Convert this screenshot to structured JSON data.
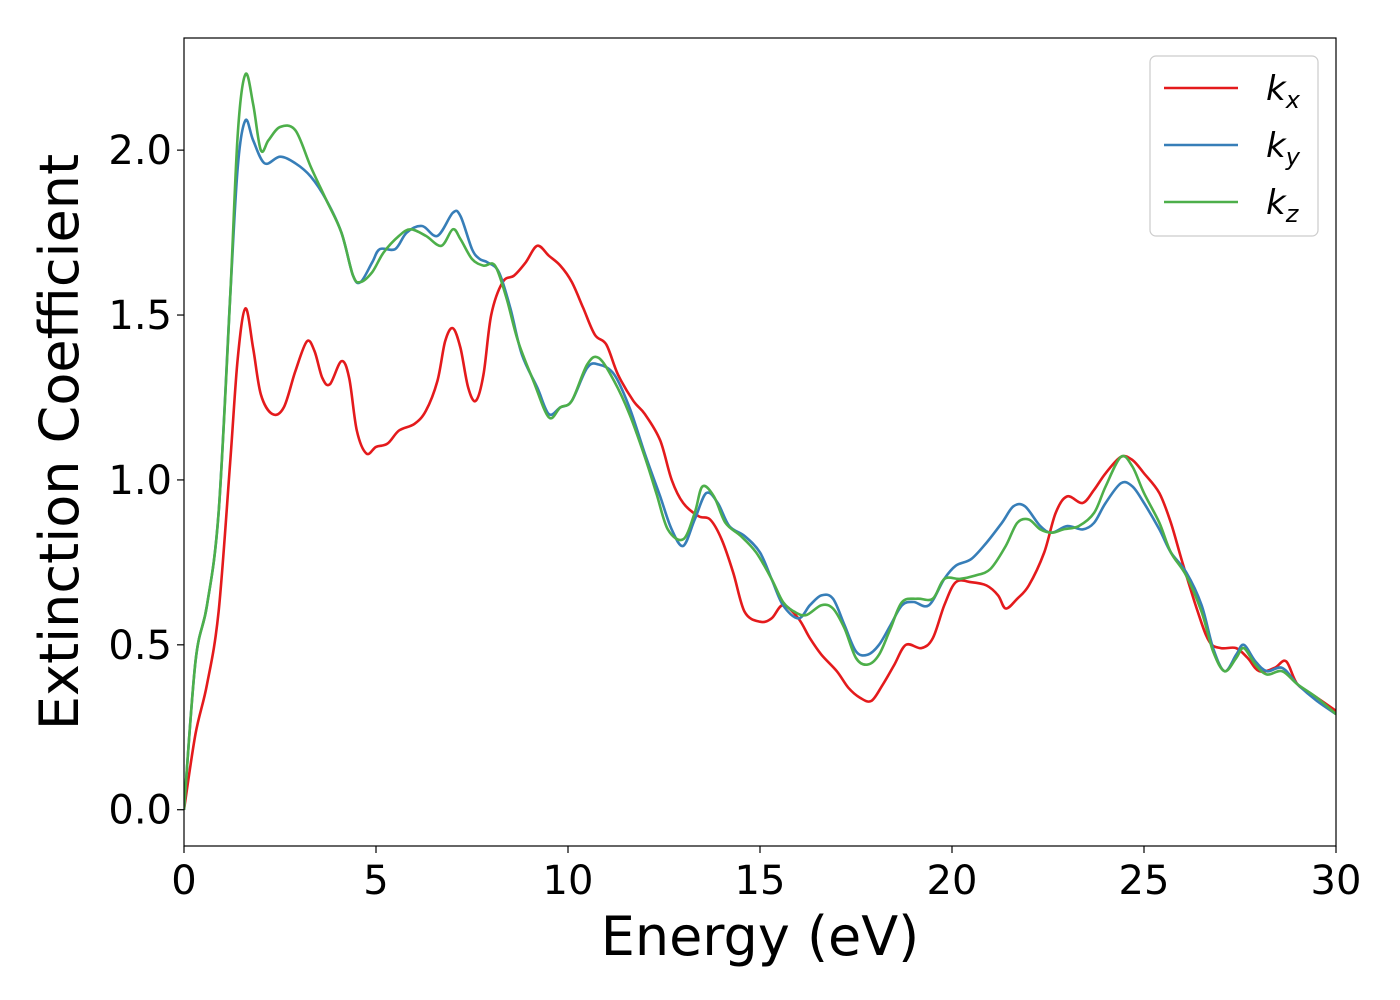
{
  "chart_data": {
    "type": "line",
    "xlabel": "Energy (eV)",
    "ylabel": "Extinction Coefficient",
    "xlim": [
      0,
      30
    ],
    "ylim": [
      -0.11,
      2.34
    ],
    "xticks": [
      0,
      5,
      10,
      15,
      20,
      25,
      30
    ],
    "xtick_labels": [
      "0",
      "5",
      "10",
      "15",
      "20",
      "25",
      "30"
    ],
    "yticks": [
      0.0,
      0.5,
      1.0,
      1.5,
      2.0
    ],
    "ytick_labels": [
      "0.0",
      "0.5",
      "1.0",
      "1.5",
      "2.0"
    ],
    "grid": false,
    "legend_position": "top-right",
    "series": [
      {
        "name": "k",
        "subscript": "x",
        "color": "#e41a1c",
        "points": [
          [
            0,
            0
          ],
          [
            0.3,
            0.23
          ],
          [
            0.6,
            0.38
          ],
          [
            0.9,
            0.6
          ],
          [
            1.2,
            1.05
          ],
          [
            1.4,
            1.37
          ],
          [
            1.6,
            1.52
          ],
          [
            1.8,
            1.4
          ],
          [
            2.0,
            1.26
          ],
          [
            2.3,
            1.2
          ],
          [
            2.6,
            1.22
          ],
          [
            2.9,
            1.33
          ],
          [
            3.2,
            1.42
          ],
          [
            3.4,
            1.39
          ],
          [
            3.6,
            1.31
          ],
          [
            3.8,
            1.29
          ],
          [
            4.1,
            1.36
          ],
          [
            4.3,
            1.31
          ],
          [
            4.5,
            1.15
          ],
          [
            4.75,
            1.08
          ],
          [
            5.0,
            1.1
          ],
          [
            5.3,
            1.11
          ],
          [
            5.6,
            1.15
          ],
          [
            6.0,
            1.17
          ],
          [
            6.3,
            1.21
          ],
          [
            6.6,
            1.3
          ],
          [
            6.8,
            1.42
          ],
          [
            7.0,
            1.46
          ],
          [
            7.2,
            1.4
          ],
          [
            7.4,
            1.28
          ],
          [
            7.6,
            1.24
          ],
          [
            7.8,
            1.32
          ],
          [
            8.0,
            1.5
          ],
          [
            8.3,
            1.6
          ],
          [
            8.6,
            1.62
          ],
          [
            8.9,
            1.66
          ],
          [
            9.2,
            1.71
          ],
          [
            9.5,
            1.68
          ],
          [
            9.8,
            1.65
          ],
          [
            10.1,
            1.6
          ],
          [
            10.4,
            1.52
          ],
          [
            10.7,
            1.44
          ],
          [
            11.0,
            1.41
          ],
          [
            11.3,
            1.32
          ],
          [
            11.7,
            1.24
          ],
          [
            12.0,
            1.2
          ],
          [
            12.4,
            1.12
          ],
          [
            12.7,
            1.0
          ],
          [
            13.0,
            0.93
          ],
          [
            13.4,
            0.89
          ],
          [
            13.7,
            0.88
          ],
          [
            14.0,
            0.82
          ],
          [
            14.3,
            0.72
          ],
          [
            14.6,
            0.6
          ],
          [
            15.0,
            0.57
          ],
          [
            15.3,
            0.58
          ],
          [
            15.6,
            0.62
          ],
          [
            16.0,
            0.58
          ],
          [
            16.3,
            0.52
          ],
          [
            16.6,
            0.47
          ],
          [
            17.0,
            0.42
          ],
          [
            17.3,
            0.37
          ],
          [
            17.6,
            0.34
          ],
          [
            17.9,
            0.33
          ],
          [
            18.2,
            0.38
          ],
          [
            18.5,
            0.44
          ],
          [
            18.8,
            0.5
          ],
          [
            19.2,
            0.49
          ],
          [
            19.5,
            0.52
          ],
          [
            19.8,
            0.62
          ],
          [
            20.1,
            0.69
          ],
          [
            20.5,
            0.69
          ],
          [
            20.9,
            0.68
          ],
          [
            21.2,
            0.65
          ],
          [
            21.4,
            0.61
          ],
          [
            21.7,
            0.64
          ],
          [
            22.0,
            0.68
          ],
          [
            22.4,
            0.78
          ],
          [
            22.7,
            0.9
          ],
          [
            23.0,
            0.95
          ],
          [
            23.4,
            0.93
          ],
          [
            23.7,
            0.97
          ],
          [
            24.0,
            1.02
          ],
          [
            24.4,
            1.07
          ],
          [
            24.7,
            1.06
          ],
          [
            25.0,
            1.02
          ],
          [
            25.4,
            0.96
          ],
          [
            25.7,
            0.87
          ],
          [
            26.0,
            0.75
          ],
          [
            26.4,
            0.6
          ],
          [
            26.7,
            0.51
          ],
          [
            27.0,
            0.49
          ],
          [
            27.4,
            0.49
          ],
          [
            27.7,
            0.46
          ],
          [
            28.0,
            0.42
          ],
          [
            28.4,
            0.43
          ],
          [
            28.7,
            0.45
          ],
          [
            29.0,
            0.38
          ],
          [
            29.5,
            0.34
          ],
          [
            30,
            0.3
          ]
        ]
      },
      {
        "name": "k",
        "subscript": "y",
        "color": "#377eb8",
        "points": [
          [
            0,
            0
          ],
          [
            0.3,
            0.45
          ],
          [
            0.6,
            0.62
          ],
          [
            0.9,
            0.9
          ],
          [
            1.2,
            1.55
          ],
          [
            1.4,
            1.95
          ],
          [
            1.6,
            2.09
          ],
          [
            1.8,
            2.03
          ],
          [
            2.1,
            1.96
          ],
          [
            2.5,
            1.98
          ],
          [
            2.9,
            1.96
          ],
          [
            3.3,
            1.92
          ],
          [
            3.7,
            1.85
          ],
          [
            4.1,
            1.75
          ],
          [
            4.4,
            1.62
          ],
          [
            4.6,
            1.6
          ],
          [
            4.9,
            1.66
          ],
          [
            5.1,
            1.7
          ],
          [
            5.5,
            1.7
          ],
          [
            5.8,
            1.75
          ],
          [
            6.2,
            1.77
          ],
          [
            6.6,
            1.74
          ],
          [
            7.0,
            1.81
          ],
          [
            7.2,
            1.8
          ],
          [
            7.5,
            1.7
          ],
          [
            7.7,
            1.67
          ],
          [
            7.9,
            1.66
          ],
          [
            8.2,
            1.63
          ],
          [
            8.5,
            1.52
          ],
          [
            8.8,
            1.38
          ],
          [
            9.2,
            1.28
          ],
          [
            9.5,
            1.2
          ],
          [
            9.8,
            1.22
          ],
          [
            10.1,
            1.24
          ],
          [
            10.5,
            1.34
          ],
          [
            10.8,
            1.35
          ],
          [
            11.2,
            1.32
          ],
          [
            11.6,
            1.22
          ],
          [
            12.0,
            1.08
          ],
          [
            12.4,
            0.95
          ],
          [
            12.7,
            0.85
          ],
          [
            13.0,
            0.8
          ],
          [
            13.3,
            0.88
          ],
          [
            13.6,
            0.96
          ],
          [
            13.9,
            0.93
          ],
          [
            14.2,
            0.86
          ],
          [
            14.6,
            0.83
          ],
          [
            15.0,
            0.78
          ],
          [
            15.3,
            0.7
          ],
          [
            15.6,
            0.62
          ],
          [
            16.0,
            0.58
          ],
          [
            16.3,
            0.62
          ],
          [
            16.6,
            0.65
          ],
          [
            16.9,
            0.64
          ],
          [
            17.2,
            0.56
          ],
          [
            17.5,
            0.48
          ],
          [
            17.8,
            0.47
          ],
          [
            18.1,
            0.5
          ],
          [
            18.4,
            0.56
          ],
          [
            18.7,
            0.62
          ],
          [
            19.0,
            0.63
          ],
          [
            19.4,
            0.62
          ],
          [
            19.8,
            0.7
          ],
          [
            20.1,
            0.74
          ],
          [
            20.5,
            0.76
          ],
          [
            20.9,
            0.81
          ],
          [
            21.3,
            0.87
          ],
          [
            21.6,
            0.92
          ],
          [
            21.9,
            0.92
          ],
          [
            22.3,
            0.86
          ],
          [
            22.6,
            0.84
          ],
          [
            23.0,
            0.86
          ],
          [
            23.4,
            0.85
          ],
          [
            23.7,
            0.87
          ],
          [
            24.0,
            0.93
          ],
          [
            24.4,
            0.99
          ],
          [
            24.7,
            0.98
          ],
          [
            25.0,
            0.93
          ],
          [
            25.4,
            0.85
          ],
          [
            25.7,
            0.78
          ],
          [
            26.1,
            0.72
          ],
          [
            26.5,
            0.62
          ],
          [
            26.8,
            0.49
          ],
          [
            27.1,
            0.42
          ],
          [
            27.4,
            0.47
          ],
          [
            27.6,
            0.5
          ],
          [
            27.9,
            0.45
          ],
          [
            28.2,
            0.42
          ],
          [
            28.6,
            0.43
          ],
          [
            29.0,
            0.38
          ],
          [
            29.5,
            0.33
          ],
          [
            30,
            0.29
          ]
        ]
      },
      {
        "name": "k",
        "subscript": "z",
        "color": "#4daf4a",
        "points": [
          [
            0,
            0
          ],
          [
            0.3,
            0.45
          ],
          [
            0.6,
            0.62
          ],
          [
            0.9,
            0.9
          ],
          [
            1.2,
            1.55
          ],
          [
            1.4,
            2.05
          ],
          [
            1.6,
            2.23
          ],
          [
            1.8,
            2.14
          ],
          [
            2.0,
            2.0
          ],
          [
            2.2,
            2.03
          ],
          [
            2.5,
            2.07
          ],
          [
            2.9,
            2.06
          ],
          [
            3.3,
            1.95
          ],
          [
            3.7,
            1.85
          ],
          [
            4.1,
            1.75
          ],
          [
            4.4,
            1.62
          ],
          [
            4.6,
            1.6
          ],
          [
            4.9,
            1.63
          ],
          [
            5.2,
            1.69
          ],
          [
            5.6,
            1.74
          ],
          [
            5.9,
            1.76
          ],
          [
            6.3,
            1.74
          ],
          [
            6.7,
            1.71
          ],
          [
            7.0,
            1.76
          ],
          [
            7.2,
            1.73
          ],
          [
            7.5,
            1.67
          ],
          [
            7.8,
            1.65
          ],
          [
            8.1,
            1.65
          ],
          [
            8.4,
            1.55
          ],
          [
            8.7,
            1.42
          ],
          [
            9.1,
            1.3
          ],
          [
            9.5,
            1.19
          ],
          [
            9.8,
            1.22
          ],
          [
            10.1,
            1.24
          ],
          [
            10.5,
            1.35
          ],
          [
            10.8,
            1.37
          ],
          [
            11.2,
            1.3
          ],
          [
            11.6,
            1.2
          ],
          [
            12.0,
            1.07
          ],
          [
            12.3,
            0.96
          ],
          [
            12.6,
            0.85
          ],
          [
            13.0,
            0.82
          ],
          [
            13.3,
            0.9
          ],
          [
            13.5,
            0.98
          ],
          [
            13.8,
            0.95
          ],
          [
            14.1,
            0.87
          ],
          [
            14.5,
            0.83
          ],
          [
            14.9,
            0.78
          ],
          [
            15.3,
            0.7
          ],
          [
            15.6,
            0.63
          ],
          [
            15.9,
            0.6
          ],
          [
            16.2,
            0.59
          ],
          [
            16.6,
            0.62
          ],
          [
            16.9,
            0.61
          ],
          [
            17.2,
            0.55
          ],
          [
            17.5,
            0.46
          ],
          [
            17.8,
            0.44
          ],
          [
            18.1,
            0.47
          ],
          [
            18.4,
            0.55
          ],
          [
            18.7,
            0.63
          ],
          [
            19.1,
            0.64
          ],
          [
            19.5,
            0.64
          ],
          [
            19.8,
            0.7
          ],
          [
            20.2,
            0.7
          ],
          [
            20.6,
            0.71
          ],
          [
            21.0,
            0.73
          ],
          [
            21.4,
            0.8
          ],
          [
            21.7,
            0.87
          ],
          [
            22.0,
            0.88
          ],
          [
            22.3,
            0.85
          ],
          [
            22.6,
            0.84
          ],
          [
            22.9,
            0.85
          ],
          [
            23.3,
            0.86
          ],
          [
            23.7,
            0.9
          ],
          [
            24.0,
            0.98
          ],
          [
            24.4,
            1.07
          ],
          [
            24.7,
            1.04
          ],
          [
            25.0,
            0.96
          ],
          [
            25.4,
            0.87
          ],
          [
            25.7,
            0.78
          ],
          [
            26.1,
            0.71
          ],
          [
            26.5,
            0.6
          ],
          [
            26.8,
            0.48
          ],
          [
            27.1,
            0.42
          ],
          [
            27.4,
            0.46
          ],
          [
            27.6,
            0.49
          ],
          [
            27.9,
            0.44
          ],
          [
            28.2,
            0.41
          ],
          [
            28.6,
            0.42
          ],
          [
            29.0,
            0.38
          ],
          [
            29.5,
            0.34
          ],
          [
            30,
            0.29
          ]
        ]
      }
    ]
  }
}
